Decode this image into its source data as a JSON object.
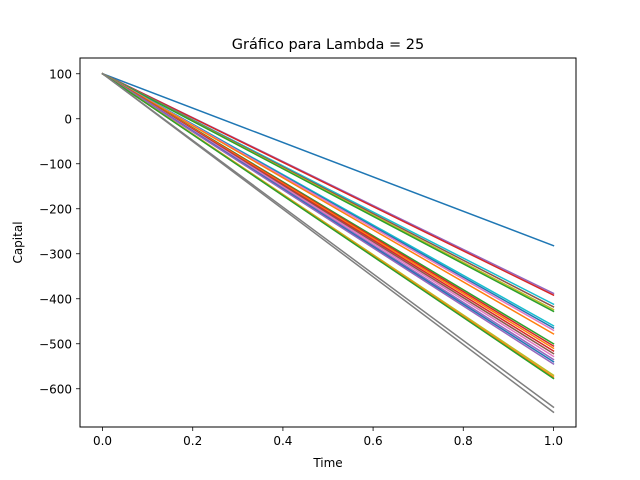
{
  "chart_data": {
    "type": "line",
    "title": "Gráfico para Lambda = 25",
    "xlabel": "Time",
    "ylabel": "Capital",
    "xlim": [
      -0.05,
      1.05
    ],
    "ylim": [
      -685,
      135
    ],
    "xticks": [
      0.0,
      0.2,
      0.4,
      0.6,
      0.8,
      1.0
    ],
    "xtick_labels": [
      "0.0",
      "0.2",
      "0.4",
      "0.6",
      "0.8",
      "1.0"
    ],
    "yticks": [
      100,
      0,
      -100,
      -200,
      -300,
      -400,
      -500,
      -600
    ],
    "ytick_labels": [
      "100",
      "0",
      "−100",
      "−200",
      "−300",
      "−400",
      "−500",
      "−600"
    ],
    "grid": false,
    "legend": "none",
    "x": [
      0.0,
      1.0
    ],
    "series": [
      {
        "values": [
          100,
          -282
        ],
        "color": "#1f77b4"
      },
      {
        "values": [
          100,
          -388
        ],
        "color": "#9467bd"
      },
      {
        "values": [
          100,
          -392
        ],
        "color": "#d62728"
      },
      {
        "values": [
          100,
          -412
        ],
        "color": "#17becf"
      },
      {
        "values": [
          100,
          -418
        ],
        "color": "#8c564b"
      },
      {
        "values": [
          100,
          -424
        ],
        "color": "#bcbd22"
      },
      {
        "values": [
          100,
          -428
        ],
        "color": "#2ca02c"
      },
      {
        "values": [
          100,
          -460
        ],
        "color": "#17becf"
      },
      {
        "values": [
          100,
          -465
        ],
        "color": "#1f77b4"
      },
      {
        "values": [
          100,
          -470
        ],
        "color": "#e377c2"
      },
      {
        "values": [
          100,
          -478
        ],
        "color": "#ff7f0e"
      },
      {
        "values": [
          100,
          -500
        ],
        "color": "#2ca02c"
      },
      {
        "values": [
          100,
          -505
        ],
        "color": "#d62728"
      },
      {
        "values": [
          100,
          -510
        ],
        "color": "#ff7f0e"
      },
      {
        "values": [
          100,
          -516
        ],
        "color": "#d62728"
      },
      {
        "values": [
          100,
          -522
        ],
        "color": "#8c564b"
      },
      {
        "values": [
          100,
          -528
        ],
        "color": "#e377c2"
      },
      {
        "values": [
          100,
          -535
        ],
        "color": "#9467bd"
      },
      {
        "values": [
          100,
          -540
        ],
        "color": "#1f77b4"
      },
      {
        "values": [
          100,
          -545
        ],
        "color": "#9467bd"
      },
      {
        "values": [
          100,
          -570
        ],
        "color": "#bcbd22"
      },
      {
        "values": [
          100,
          -574
        ],
        "color": "#ff7f0e"
      },
      {
        "values": [
          100,
          -577
        ],
        "color": "#2ca02c"
      },
      {
        "values": [
          100,
          -641
        ],
        "color": "#7f7f7f"
      },
      {
        "values": [
          100,
          -652
        ],
        "color": "#7f7f7f"
      }
    ]
  }
}
